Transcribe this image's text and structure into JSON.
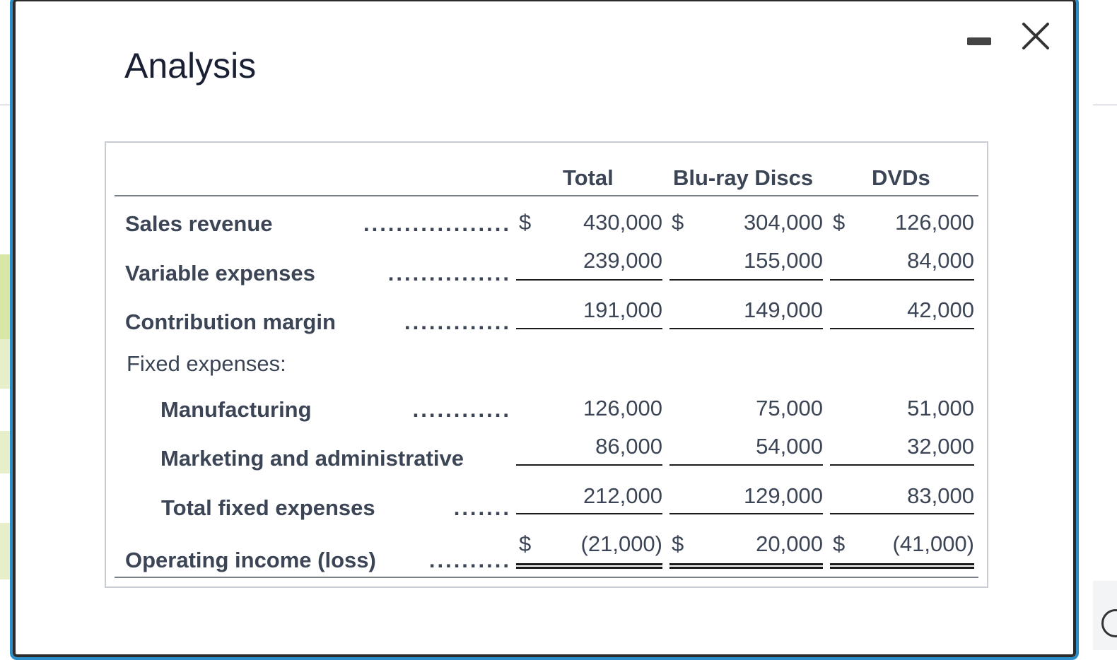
{
  "modal": {
    "title": "Analysis"
  },
  "statement": {
    "headers": [
      "Total",
      "Blu-ray Discs",
      "DVDs"
    ],
    "currency_symbol": "$",
    "rows": {
      "sales_revenue": {
        "label": "Sales revenue",
        "values": [
          "430,000",
          "304,000",
          "126,000"
        ]
      },
      "variable_expenses": {
        "label": "Variable expenses",
        "values": [
          "239,000",
          "155,000",
          "84,000"
        ]
      },
      "contribution_margin": {
        "label": "Contribution margin",
        "values": [
          "191,000",
          "149,000",
          "42,000"
        ]
      },
      "fixed_expenses_heading": {
        "label": "Fixed expenses:"
      },
      "manufacturing": {
        "label": "Manufacturing",
        "values": [
          "126,000",
          "75,000",
          "51,000"
        ]
      },
      "marketing_admin": {
        "label": "Marketing and administrative",
        "values": [
          "86,000",
          "54,000",
          "32,000"
        ]
      },
      "total_fixed": {
        "label": "Total fixed expenses",
        "values": [
          "212,000",
          "129,000",
          "83,000"
        ]
      },
      "operating_income": {
        "label": "Operating income (loss)",
        "values": [
          "(21,000)",
          "20,000",
          "(41,000)"
        ]
      }
    }
  }
}
